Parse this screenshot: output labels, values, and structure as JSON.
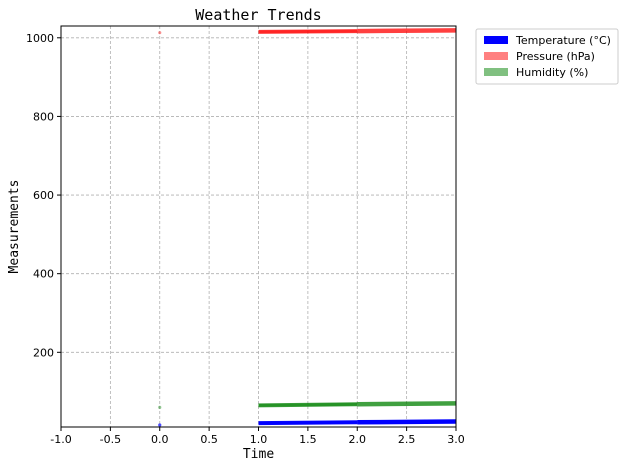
{
  "chart_data": {
    "type": "line",
    "title": "Weather Trends",
    "xlabel": "Time",
    "ylabel": "Measurements",
    "xlim": [
      -1.0,
      3.0
    ],
    "ylim": [
      10,
      1030
    ],
    "xticks": [
      "-1.0",
      "-0.5",
      "0.0",
      "0.5",
      "1.0",
      "1.5",
      "2.0",
      "2.5",
      "3.0"
    ],
    "xtick_values": [
      -1.0,
      -0.5,
      0.0,
      0.5,
      1.0,
      1.5,
      2.0,
      2.5,
      3.0
    ],
    "yticks": [
      "200",
      "400",
      "600",
      "800",
      "1000"
    ],
    "ytick_values": [
      200,
      400,
      600,
      800,
      1000
    ],
    "grid": true,
    "legend_placement": "outside-top-right",
    "series": [
      {
        "name": "Temperature (°C)",
        "color": "#0000ff",
        "points": [
          {
            "x": 0,
            "y": 15,
            "alpha": 0.7,
            "width": 1.5
          },
          {
            "x": 1,
            "y": 20,
            "alpha": 0.85,
            "width": 3
          },
          {
            "x": 2,
            "y": 22,
            "alpha": 0.95,
            "width": 4
          },
          {
            "x": 3,
            "y": 24,
            "alpha": 1.0,
            "width": 4.5
          }
        ]
      },
      {
        "name": "Pressure (hPa)",
        "color": "#ff0000",
        "alpha": 0.5,
        "points": [
          {
            "x": 0,
            "y": 1013,
            "alpha": 0.4,
            "width": 1.5
          },
          {
            "x": 1,
            "y": 1015,
            "alpha": 0.5,
            "width": 3
          },
          {
            "x": 2,
            "y": 1017,
            "alpha": 0.7,
            "width": 4
          },
          {
            "x": 3,
            "y": 1019,
            "alpha": 0.75,
            "width": 4.5
          }
        ]
      },
      {
        "name": "Humidity (%)",
        "color": "#008000",
        "alpha": 0.5,
        "points": [
          {
            "x": 0,
            "y": 60,
            "alpha": 0.4,
            "width": 1.5
          },
          {
            "x": 1,
            "y": 65,
            "alpha": 0.5,
            "width": 3
          },
          {
            "x": 2,
            "y": 68,
            "alpha": 0.7,
            "width": 4
          },
          {
            "x": 3,
            "y": 70,
            "alpha": 0.75,
            "width": 4.5
          }
        ]
      }
    ],
    "legend_colors": [
      "#0000ff",
      "#ff8080",
      "#80c080"
    ]
  }
}
